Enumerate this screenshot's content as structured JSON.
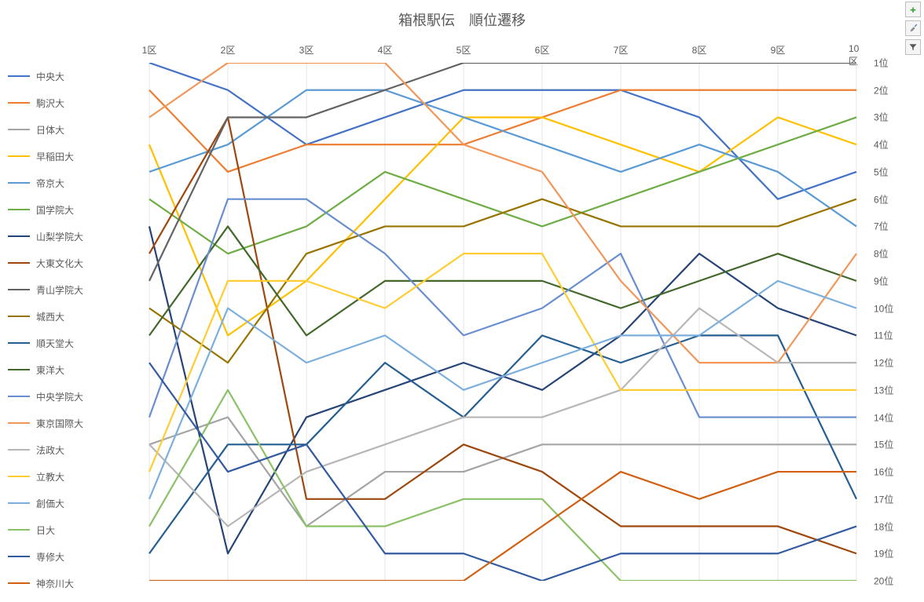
{
  "title": "箱根駅伝　順位遷移",
  "title_fontsize": 18,
  "title_color": "#595959",
  "background_color": "#ffffff",
  "axis_label_color": "#595959",
  "axis_label_fontsize": 12,
  "grid_color": "#e6e6e6",
  "line_width": 2.2,
  "x_categories": [
    "1区",
    "2区",
    "3区",
    "4区",
    "5区",
    "6区",
    "7区",
    "8区",
    "9区",
    "10区"
  ],
  "y_ticks": [
    1,
    2,
    3,
    4,
    5,
    6,
    7,
    8,
    9,
    10,
    11,
    12,
    13,
    14,
    15,
    16,
    17,
    18,
    19,
    20
  ],
  "y_tick_suffix": "位",
  "ylim": [
    1,
    20
  ],
  "series": [
    {
      "name": "中央大",
      "color": "#4472c4",
      "values": [
        1,
        2,
        4,
        3,
        2,
        2,
        2,
        3,
        6,
        5
      ]
    },
    {
      "name": "駒沢大",
      "color": "#ed7d31",
      "values": [
        2,
        5,
        4,
        4,
        4,
        3,
        2,
        2,
        2,
        2
      ]
    },
    {
      "name": "日体大",
      "color": "#a5a5a5",
      "values": [
        15,
        14,
        18,
        16,
        16,
        15,
        15,
        15,
        15,
        15
      ]
    },
    {
      "name": "早稲田大",
      "color": "#ffc000",
      "values": [
        4,
        11,
        9,
        6,
        3,
        3,
        4,
        5,
        3,
        4
      ]
    },
    {
      "name": "帝京大",
      "color": "#5b9bd5",
      "values": [
        5,
        4,
        2,
        2,
        3,
        4,
        5,
        4,
        5,
        7
      ]
    },
    {
      "name": "国学院大",
      "color": "#70ad47",
      "values": [
        6,
        8,
        7,
        5,
        6,
        7,
        6,
        5,
        4,
        3
      ]
    },
    {
      "name": "山梨学院大",
      "color": "#264478",
      "values": [
        7,
        19,
        14,
        13,
        12,
        13,
        11,
        8,
        10,
        11
      ]
    },
    {
      "name": "大東文化大",
      "color": "#9e480e",
      "values": [
        8,
        3,
        17,
        17,
        15,
        16,
        18,
        18,
        18,
        19
      ]
    },
    {
      "name": "青山学院大",
      "color": "#636363",
      "values": [
        9,
        3,
        3,
        2,
        1,
        1,
        1,
        1,
        1,
        1
      ]
    },
    {
      "name": "城西大",
      "color": "#997300",
      "values": [
        10,
        12,
        8,
        7,
        7,
        6,
        7,
        7,
        7,
        6
      ]
    },
    {
      "name": "順天堂大",
      "color": "#255e91",
      "values": [
        19,
        15,
        15,
        12,
        14,
        11,
        12,
        11,
        11,
        17
      ]
    },
    {
      "name": "東洋大",
      "color": "#43682b",
      "values": [
        11,
        7,
        11,
        9,
        9,
        9,
        10,
        9,
        8,
        9
      ]
    },
    {
      "name": "中央学院大",
      "color": "#698ed0",
      "values": [
        14,
        6,
        6,
        8,
        11,
        10,
        8,
        14,
        14,
        14
      ]
    },
    {
      "name": "東京国際大",
      "color": "#f1975a",
      "values": [
        3,
        1,
        1,
        1,
        4,
        5,
        9,
        12,
        12,
        8
      ]
    },
    {
      "name": "法政大",
      "color": "#b7b7b7",
      "values": [
        15,
        18,
        16,
        15,
        14,
        14,
        13,
        10,
        12,
        12
      ]
    },
    {
      "name": "立教大",
      "color": "#ffcd33",
      "values": [
        16,
        9,
        9,
        10,
        8,
        8,
        13,
        13,
        13,
        13
      ]
    },
    {
      "name": "創価大",
      "color": "#7cafdd",
      "values": [
        17,
        10,
        12,
        11,
        13,
        12,
        11,
        11,
        9,
        10
      ]
    },
    {
      "name": "日大",
      "color": "#8cc168",
      "values": [
        18,
        13,
        18,
        18,
        17,
        17,
        20,
        20,
        20,
        20
      ]
    },
    {
      "name": "専修大",
      "color": "#335aa1",
      "values": [
        12,
        16,
        15,
        19,
        19,
        20,
        19,
        19,
        19,
        18
      ]
    },
    {
      "name": "神奈川大",
      "color": "#d26012",
      "values": [
        20,
        20,
        20,
        20,
        20,
        18,
        16,
        17,
        16,
        16
      ]
    }
  ],
  "toolbar": {
    "add": "+",
    "brush": "brush",
    "filter": "filter"
  }
}
